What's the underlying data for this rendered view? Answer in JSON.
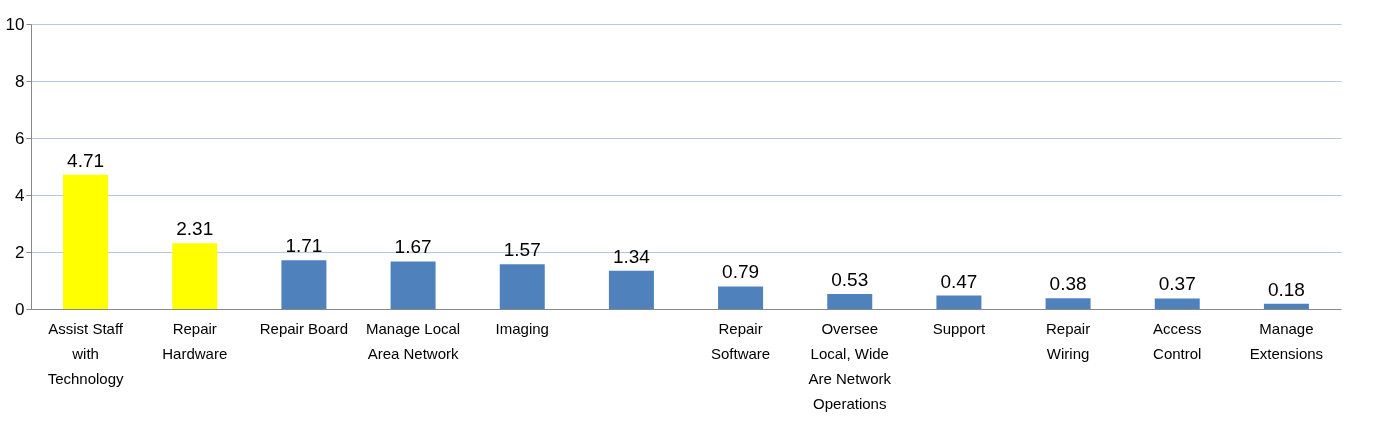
{
  "chart_data": {
    "type": "bar",
    "categories": [
      "Assist Staff with Technology",
      "Repair Hardware",
      "Repair Board",
      "Manage Local Area Network",
      "Imaging",
      null,
      "Repair Software",
      "Oversee Local, Wide Are Network Operations",
      "Support",
      "Repair Wiring",
      "Access Control",
      "Manage Extensions"
    ],
    "values": [
      4.71,
      2.31,
      1.71,
      1.67,
      1.57,
      1.34,
      0.79,
      0.53,
      0.47,
      0.38,
      0.37,
      0.18
    ],
    "colors": [
      "#ffff00",
      "#ffff00",
      "#4f81bd",
      "#4f81bd",
      "#4f81bd",
      "#4f81bd",
      "#4f81bd",
      "#4f81bd",
      "#4f81bd",
      "#4f81bd",
      "#4f81bd",
      "#4f81bd"
    ],
    "ylim": [
      0,
      10
    ],
    "yticks": [
      0,
      2,
      4,
      6,
      8,
      10
    ],
    "grid": "y",
    "data_labels": true
  }
}
